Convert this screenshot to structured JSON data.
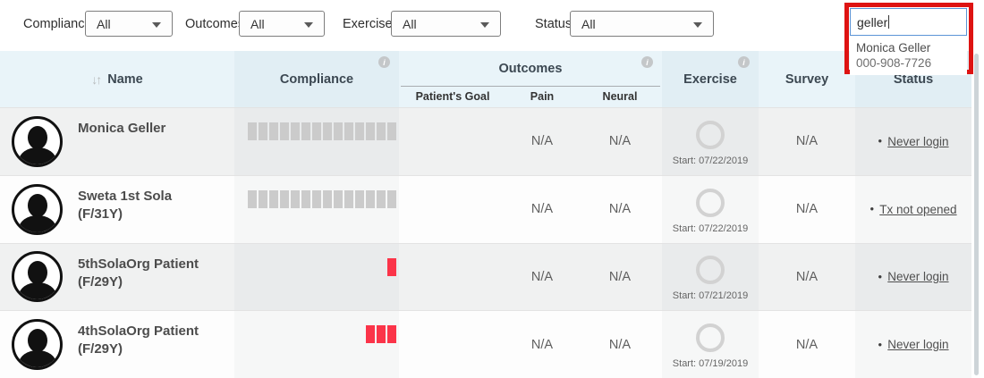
{
  "filters": [
    {
      "label": "Compliance",
      "value": "All"
    },
    {
      "label": "Outcomes",
      "value": "All"
    },
    {
      "label": "Exercise",
      "value": "All"
    },
    {
      "label": "Status",
      "value": "All"
    }
  ],
  "search": {
    "value": "geller",
    "suggestion": {
      "name": "Monica Geller",
      "phone": "000-908-7726"
    }
  },
  "icons": {
    "sort": "↓↑",
    "info": "i"
  },
  "table": {
    "header": {
      "name": "Name",
      "compliance": "Compliance",
      "outcomes": "Outcomes",
      "patients_goal": "Patient's Goal",
      "pain": "Pain",
      "neural": "Neural",
      "exercise": "Exercise",
      "survey": "Survey",
      "status": "Status"
    },
    "rows": [
      {
        "name_line1": "Monica Geller",
        "name_line2": "",
        "compliance": [
          "g",
          "g",
          "g",
          "g",
          "g",
          "g",
          "g",
          "g",
          "g",
          "g",
          "g",
          "g",
          "g",
          "g"
        ],
        "pain": "N/A",
        "neural": "N/A",
        "exercise_start": "Start: 07/22/2019",
        "survey": "N/A",
        "status": "Never login"
      },
      {
        "name_line1": "Sweta 1st Sola",
        "name_line2": "(F/31Y)",
        "compliance": [
          "g",
          "g",
          "g",
          "g",
          "g",
          "g",
          "g",
          "g",
          "g",
          "g",
          "g",
          "g",
          "g",
          "g"
        ],
        "pain": "N/A",
        "neural": "N/A",
        "exercise_start": "Start: 07/22/2019",
        "survey": "N/A",
        "status": "Tx not opened"
      },
      {
        "name_line1": "5thSolaOrg Patient",
        "name_line2": "(F/29Y)",
        "compliance": [
          "",
          "",
          "",
          "",
          "",
          "",
          "",
          "",
          "",
          "",
          "",
          "",
          "",
          "r"
        ],
        "pain": "N/A",
        "neural": "N/A",
        "exercise_start": "Start: 07/21/2019",
        "survey": "N/A",
        "status": "Never login"
      },
      {
        "name_line1": "4thSolaOrg Patient",
        "name_line2": "(F/29Y)",
        "compliance": [
          "",
          "",
          "",
          "",
          "",
          "",
          "",
          "",
          "",
          "",
          "",
          "r",
          "r",
          "r"
        ],
        "pain": "N/A",
        "neural": "N/A",
        "exercise_start": "Start: 07/19/2019",
        "survey": "N/A",
        "status": "Never login"
      }
    ]
  },
  "colors": {
    "bar_gray": "#cbcbcb",
    "bar_red": "#fb3449",
    "annotation_red": "#de1312",
    "search_border": "#5b94d6"
  }
}
